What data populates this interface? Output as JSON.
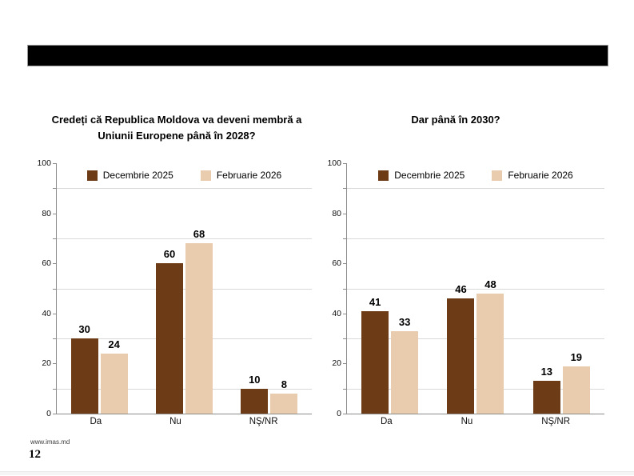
{
  "footer": {
    "website": "www.imas.md",
    "page_number": "12"
  },
  "colors": {
    "series_dec": "#6e3b17",
    "series_feb": "#e9cbae",
    "grid": "#d9d9d9",
    "axis": "#8c8c8c"
  },
  "chart_data": [
    {
      "type": "bar",
      "title": "Credeți că Republica Moldova va deveni membră a\nUniunii Europene până în 2028?",
      "categories": [
        "Da",
        "Nu",
        "NŞ/NR"
      ],
      "series": [
        {
          "name": "Decembrie 2025",
          "color": "#6e3b17",
          "values": [
            30,
            60,
            10
          ]
        },
        {
          "name": "Februarie 2026",
          "color": "#e9cbae",
          "values": [
            24,
            68,
            8
          ]
        }
      ],
      "ylim": [
        0,
        100
      ],
      "yticks": [
        0,
        20,
        40,
        60,
        80,
        100
      ],
      "gridlines": [
        10,
        30,
        50,
        70,
        90
      ],
      "grid": true,
      "legend_position": "top-center",
      "xlabel": "",
      "ylabel": ""
    },
    {
      "type": "bar",
      "title": "Dar până în 2030?",
      "categories": [
        "Da",
        "Nu",
        "NŞ/NR"
      ],
      "series": [
        {
          "name": "Decembrie 2025",
          "color": "#6e3b17",
          "values": [
            41,
            46,
            13
          ]
        },
        {
          "name": "Februarie 2026",
          "color": "#e9cbae",
          "values": [
            33,
            48,
            19
          ]
        }
      ],
      "ylim": [
        0,
        100
      ],
      "yticks": [
        0,
        20,
        40,
        60,
        80,
        100
      ],
      "gridlines": [
        10,
        30,
        50,
        70,
        90
      ],
      "grid": true,
      "legend_position": "top-center",
      "xlabel": "",
      "ylabel": ""
    }
  ]
}
